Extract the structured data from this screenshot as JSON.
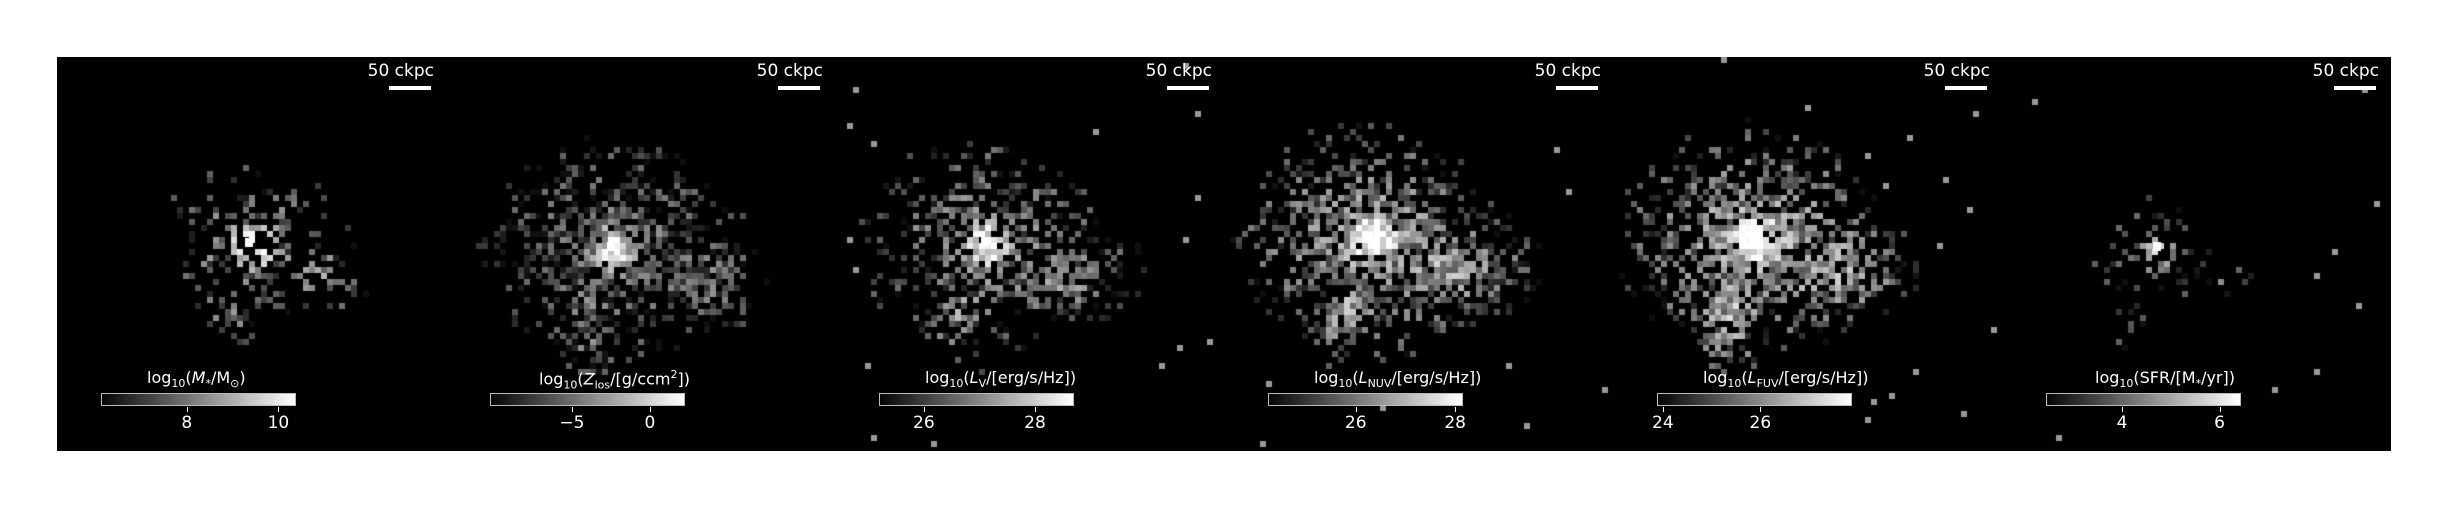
{
  "panels": [
    {
      "scalebar": "50 ckpc",
      "colorbar": {
        "prefix": "log",
        "sub": "10",
        "open": "(",
        "sym": "M",
        "symsub": "*",
        "mid": "/M",
        "midsub": "⊙",
        "rest": ")",
        "sup": ""
      },
      "ticks": [
        "8",
        "10"
      ],
      "tick_fractions": [
        0.44,
        0.91
      ]
    },
    {
      "scalebar": "50 ckpc",
      "colorbar": {
        "prefix": "log",
        "sub": "10",
        "open": "(",
        "sym": "Z",
        "symsub": "los",
        "mid": "/[g/ccm",
        "midsub": "",
        "rest": "])",
        "sup": "2"
      },
      "ticks": [
        "−5",
        "0"
      ],
      "tick_fractions": [
        0.42,
        0.82
      ]
    },
    {
      "scalebar": "50 ckpc",
      "colorbar": {
        "prefix": "log",
        "sub": "10",
        "open": "(",
        "sym": "L",
        "symsub": "V",
        "mid": "/[erg/s/Hz]",
        "midsub": "",
        "rest": ")",
        "sup": ""
      },
      "ticks": [
        "26",
        "28"
      ],
      "tick_fractions": [
        0.23,
        0.8
      ]
    },
    {
      "scalebar": "50 ckpc",
      "colorbar": {
        "prefix": "log",
        "sub": "10",
        "open": "(",
        "sym": "L",
        "symsub": "NUV",
        "mid": "/[erg/s/Hz]",
        "midsub": "",
        "rest": ")",
        "sup": ""
      },
      "ticks": [
        "26",
        "28"
      ],
      "tick_fractions": [
        0.45,
        0.96
      ]
    },
    {
      "scalebar": "50 ckpc",
      "colorbar": {
        "prefix": "log",
        "sub": "10",
        "open": "(",
        "sym": "L",
        "symsub": "FUV",
        "mid": "/[erg/s/Hz]",
        "midsub": "",
        "rest": ")",
        "sup": ""
      },
      "ticks": [
        "24",
        "26"
      ],
      "tick_fractions": [
        0.03,
        0.53
      ]
    },
    {
      "scalebar": "50 ckpc",
      "colorbar": {
        "prefix": "log",
        "sub": "10",
        "open": "(",
        "sym": "SFR/[M",
        "symsub": "*",
        "mid": "/yr])",
        "midsub": "",
        "rest": "",
        "sup": ""
      },
      "ticks": [
        "4",
        "6"
      ],
      "tick_fractions": [
        0.39,
        0.89
      ]
    }
  ],
  "colormap": "gray"
}
